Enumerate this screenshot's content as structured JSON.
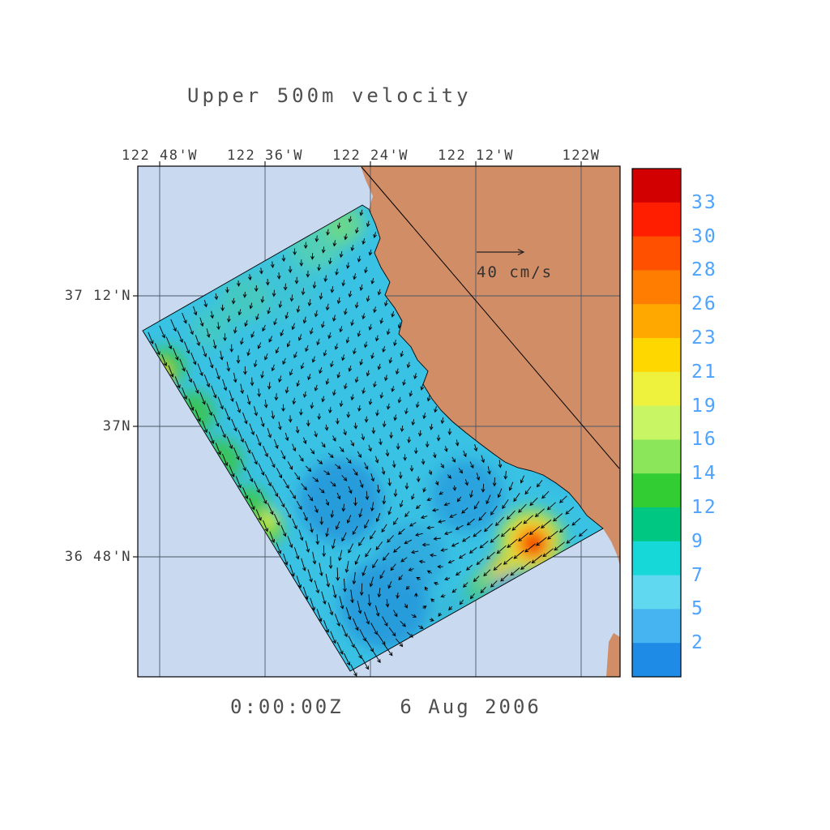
{
  "title": "Upper 500m velocity",
  "timestamp": "0:00:00Z    6 Aug 2006",
  "reference_vector": {
    "label": "40 cm/s"
  },
  "axes": {
    "lon_ticks": [
      "122 48'W",
      "122 36'W",
      "122 24'W",
      "122 12'W",
      "122W"
    ],
    "lat_ticks": [
      "37 12'N",
      "37N",
      "36 48'N"
    ]
  },
  "colorbar": {
    "tick_labels": [
      "33",
      "30",
      "28",
      "26",
      "23",
      "21",
      "19",
      "16",
      "14",
      "12",
      "9",
      "7",
      "5",
      "2"
    ],
    "segment_colors": [
      "#d20000",
      "#ff1e00",
      "#ff5000",
      "#ff7d00",
      "#ffa800",
      "#ffd700",
      "#eef23c",
      "#c8f564",
      "#8ce65a",
      "#32cd32",
      "#00c882",
      "#17d8d8",
      "#5fd8f0",
      "#46b4f0",
      "#1e8ce6"
    ]
  },
  "map": {
    "ocean_color": "#c8d9f0",
    "land_color": "#d08d66",
    "field_base_color": "#3ac2e4",
    "label_color": "#3d3d3d",
    "colorbar_label_color": "#4da3ff"
  },
  "chart_data": {
    "type": "heatmap",
    "subtype": "vector_field_map",
    "title": "Upper 500m velocity",
    "time_label": "0:00:00Z    6 Aug 2006",
    "x_axis": {
      "ticks": [
        "122 48'W",
        "122 36'W",
        "122 24'W",
        "122 12'W",
        "122W"
      ]
    },
    "y_axis": {
      "ticks": [
        "37 12'N",
        "37N",
        "36 48'N"
      ]
    },
    "colorbar": {
      "tick_values": [
        33,
        30,
        28,
        26,
        23,
        21,
        19,
        16,
        14,
        12,
        9,
        7,
        5,
        2
      ],
      "orientation": "vertical",
      "position": "right"
    },
    "reference_vector_label": "40 cm/s",
    "grid": true,
    "notable_features": [
      {
        "feature": "equatorward coastal jet along northwestern domain edge",
        "speed_range": [
          14,
          26
        ]
      },
      {
        "feature": "intense jet patch near southeastern boundary south of Monterey Bay",
        "speed_range": [
          26,
          33
        ]
      },
      {
        "feature": "mesoscale eddies in domain interior",
        "speed_range": [
          2,
          9
        ]
      },
      {
        "feature": "tilted rectangular model domain over Monterey Bay coastline masked by land"
      }
    ]
  }
}
